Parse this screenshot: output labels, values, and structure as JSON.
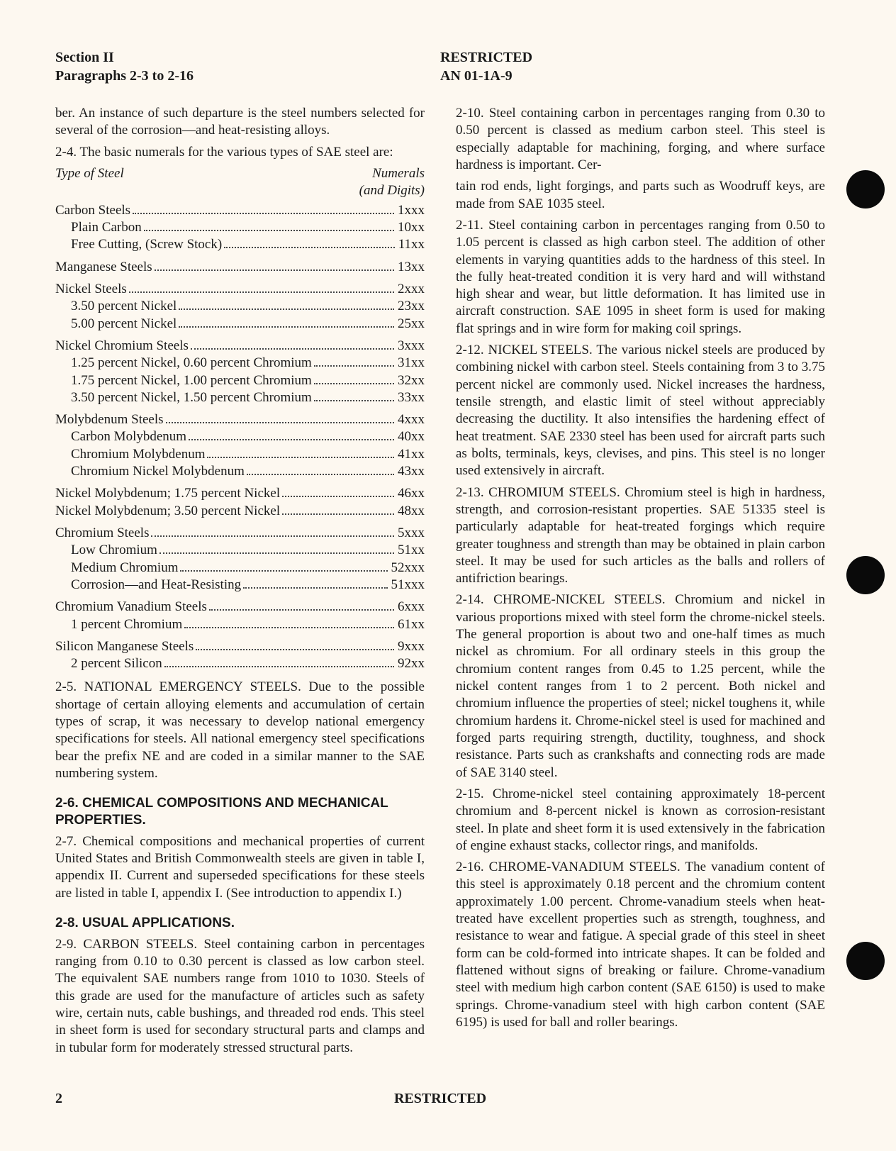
{
  "header": {
    "section_label": "Section II",
    "paragraphs_label": "Paragraphs 2-3 to 2-16",
    "restricted": "RESTRICTED",
    "doc_no": "AN 01-1A-9"
  },
  "intro_continuation": "ber. An instance of such departure is the steel numbers selected for several of the corrosion—and heat-resisting alloys.",
  "para_2_4": "2-4. The basic numerals for the various types of SAE steel are:",
  "table_header": {
    "left": "Type of Steel",
    "right_top": "Numerals",
    "right_bottom": "(and Digits)"
  },
  "steel_types": [
    {
      "label": "Carbon Steels",
      "num": "1xxx",
      "indent": 0,
      "sep": false
    },
    {
      "label": "Plain Carbon",
      "num": "10xx",
      "indent": 1,
      "sep": false
    },
    {
      "label": "Free Cutting, (Screw Stock)",
      "num": "11xx",
      "indent": 1,
      "sep": false
    },
    {
      "label": "Manganese Steels",
      "num": "13xx",
      "indent": 0,
      "sep": true
    },
    {
      "label": "Nickel Steels",
      "num": "2xxx",
      "indent": 0,
      "sep": true
    },
    {
      "label": "3.50 percent Nickel",
      "num": "23xx",
      "indent": 1,
      "sep": false
    },
    {
      "label": "5.00 percent Nickel",
      "num": "25xx",
      "indent": 1,
      "sep": false
    },
    {
      "label": "Nickel Chromium Steels",
      "num": "3xxx",
      "indent": 0,
      "sep": true
    },
    {
      "label": "1.25 percent Nickel, 0.60 percent Chromium",
      "num": "31xx",
      "indent": 1,
      "sep": false
    },
    {
      "label": "1.75 percent Nickel, 1.00 percent Chromium",
      "num": "32xx",
      "indent": 1,
      "sep": false
    },
    {
      "label": "3.50 percent Nickel, 1.50 percent Chromium",
      "num": "33xx",
      "indent": 1,
      "sep": false
    },
    {
      "label": "Molybdenum Steels",
      "num": "4xxx",
      "indent": 0,
      "sep": true
    },
    {
      "label": "Carbon Molybdenum",
      "num": "40xx",
      "indent": 1,
      "sep": false
    },
    {
      "label": "Chromium Molybdenum",
      "num": "41xx",
      "indent": 1,
      "sep": false
    },
    {
      "label": "Chromium Nickel Molybdenum",
      "num": "43xx",
      "indent": 1,
      "sep": false
    },
    {
      "label": "Nickel Molybdenum; 1.75 percent Nickel",
      "num": "46xx",
      "indent": 0,
      "sep": true
    },
    {
      "label": "Nickel Molybdenum; 3.50 percent Nickel",
      "num": "48xx",
      "indent": 0,
      "sep": false
    },
    {
      "label": "Chromium Steels",
      "num": "5xxx",
      "indent": 0,
      "sep": true
    },
    {
      "label": "Low Chromium",
      "num": "51xx",
      "indent": 1,
      "sep": false
    },
    {
      "label": "Medium Chromium",
      "num": "52xxx",
      "indent": 1,
      "sep": false
    },
    {
      "label": "Corrosion—and Heat-Resisting",
      "num": "51xxx",
      "indent": 1,
      "sep": false
    },
    {
      "label": "Chromium Vanadium Steels",
      "num": "6xxx",
      "indent": 0,
      "sep": true
    },
    {
      "label": "1 percent Chromium",
      "num": "61xx",
      "indent": 1,
      "sep": false
    },
    {
      "label": "Silicon Manganese Steels",
      "num": "9xxx",
      "indent": 0,
      "sep": true
    },
    {
      "label": "2 percent Silicon",
      "num": "92xx",
      "indent": 1,
      "sep": false
    }
  ],
  "para_2_5": "2-5. NATIONAL EMERGENCY STEELS. Due to the possible shortage of certain alloying elements and accumulation of certain types of scrap, it was necessary to develop national emergency specifications for steels. All national emergency steel specifications bear the prefix NE and are coded in a similar manner to the SAE numbering system.",
  "heading_2_6": "2-6. CHEMICAL COMPOSITIONS AND MECHANICAL PROPERTIES.",
  "para_2_7": "2-7. Chemical compositions and mechanical properties of current United States and British Commonwealth steels are given in table I, appendix II. Current and superseded specifications for these steels are listed in table I, appendix I. (See introduction to appendix I.)",
  "heading_2_8": "2-8. USUAL APPLICATIONS.",
  "para_2_9": "2-9. CARBON STEELS. Steel containing carbon in percentages ranging from 0.10 to 0.30 percent is classed as low carbon steel. The equivalent SAE numbers range from 1010 to 1030. Steels of this grade are used for the manufacture of articles such as safety wire, certain nuts, cable bushings, and threaded rod ends. This steel in sheet form is used for secondary structural parts and clamps and in tubular form for moderately stressed structural parts.",
  "para_2_10": "2-10. Steel containing carbon in percentages ranging from 0.30 to 0.50 percent is classed as medium carbon steel. This steel is especially adaptable for machining, forging, and where surface hardness is important. Cer-",
  "para_2_10_cont": "tain rod ends, light forgings, and parts such as Woodruff keys, are made from SAE 1035 steel.",
  "para_2_11": "2-11. Steel containing carbon in percentages ranging from 0.50 to 1.05 percent is classed as high carbon steel. The addition of other elements in varying quantities adds to the hardness of this steel. In the fully heat-treated condition it is very hard and will withstand high shear and wear, but little deformation. It has limited use in aircraft construction. SAE 1095 in sheet form is used for making flat springs and in wire form for making coil springs.",
  "para_2_12": "2-12. NICKEL STEELS. The various nickel steels are produced by combining nickel with carbon steel. Steels containing from 3 to 3.75 percent nickel are commonly used. Nickel increases the hardness, tensile strength, and elastic limit of steel without appreciably decreasing the ductility. It also intensifies the hardening effect of heat treatment. SAE 2330 steel has been used for aircraft parts such as bolts, terminals, keys, clevises, and pins. This steel is no longer used extensively in aircraft.",
  "para_2_13": "2-13. CHROMIUM STEELS. Chromium steel is high in hardness, strength, and corrosion-resistant properties. SAE 51335 steel is particularly adaptable for heat-treated forgings which require greater toughness and strength than may be obtained in plain carbon steel. It may be used for such articles as the balls and rollers of antifriction bearings.",
  "para_2_14": "2-14. CHROME-NICKEL STEELS. Chromium and nickel in various proportions mixed with steel form the chrome-nickel steels. The general proportion is about two and one-half times as much nickel as chromium. For all ordinary steels in this group the chromium content ranges from 0.45 to 1.25 percent, while the nickel content ranges from 1 to 2 percent. Both nickel and chromium influence the properties of steel; nickel toughens it, while chromium hardens it. Chrome-nickel steel is used for machined and forged parts requiring strength, ductility, toughness, and shock resistance. Parts such as crankshafts and connecting rods are made of SAE 3140 steel.",
  "para_2_15": "2-15. Chrome-nickel steel containing approximately 18-percent chromium and 8-percent nickel is known as corrosion-resistant steel. In plate and sheet form it is used extensively in the fabrication of engine exhaust stacks, collector rings, and manifolds.",
  "para_2_16": "2-16. CHROME-VANADIUM STEELS. The vanadium content of this steel is approximately 0.18 percent and the chromium content approximately 1.00 percent. Chrome-vanadium steels when heat-treated have excellent properties such as strength, toughness, and resistance to wear and fatigue. A special grade of this steel in sheet form can be cold-formed into intricate shapes. It can be folded and flattened without signs of breaking or failure. Chrome-vanadium steel with medium high carbon content (SAE 6150) is used to make springs. Chrome-vanadium steel with high carbon content (SAE 6195) is used for ball and roller bearings.",
  "footer": {
    "page": "2",
    "restricted": "RESTRICTED"
  },
  "colors": {
    "bg": "#fdf8f0",
    "text": "#1a1a1a",
    "hole": "#0a0a0a"
  }
}
